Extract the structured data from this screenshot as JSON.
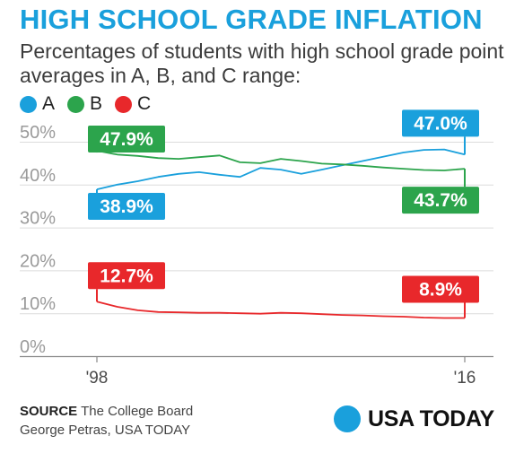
{
  "header": {
    "title": "HIGH SCHOOL GRADE INFLATION",
    "subtitle": "Percentages of students with high school grade point averages in A, B, and C range:"
  },
  "legend": [
    {
      "label": "A",
      "color": "#1aa0dc"
    },
    {
      "label": "B",
      "color": "#2ca44c"
    },
    {
      "label": "C",
      "color": "#e8282b"
    }
  ],
  "chart_data": {
    "type": "line",
    "title": "HIGH SCHOOL GRADE INFLATION",
    "subtitle": "Percentages of students with high school grade point averages in A, B, and C range:",
    "x": [
      1998,
      1999,
      2000,
      2001,
      2002,
      2003,
      2004,
      2005,
      2006,
      2007,
      2008,
      2009,
      2010,
      2011,
      2012,
      2013,
      2014,
      2015,
      2016
    ],
    "x_tick_labels": [
      "'98",
      "'16"
    ],
    "y_tick_labels": [
      "0%",
      "10%",
      "20%",
      "30%",
      "40%",
      "50%"
    ],
    "ylim": [
      0,
      50
    ],
    "grid": true,
    "legend_placement": "top-left",
    "series": [
      {
        "name": "A",
        "color": "#1aa0dc",
        "values": [
          38.9,
          40.0,
          40.8,
          41.8,
          42.5,
          42.9,
          42.3,
          41.8,
          43.9,
          43.5,
          42.5,
          43.5,
          44.5,
          45.5,
          46.5,
          47.5,
          48.1,
          48.2,
          47.0
        ],
        "start_label": "38.9%",
        "end_label": "47.0%"
      },
      {
        "name": "B",
        "color": "#2ca44c",
        "values": [
          47.9,
          47.0,
          46.7,
          46.2,
          46.0,
          46.4,
          46.8,
          45.2,
          45.0,
          46.0,
          45.5,
          44.9,
          44.7,
          44.4,
          44.0,
          43.7,
          43.4,
          43.3,
          43.7
        ],
        "start_label": "47.9%",
        "end_label": "43.7%"
      },
      {
        "name": "C",
        "color": "#e8282b",
        "values": [
          12.7,
          11.5,
          10.7,
          10.3,
          10.2,
          10.1,
          10.1,
          10.0,
          9.9,
          10.1,
          10.0,
          9.8,
          9.6,
          9.5,
          9.3,
          9.2,
          9.0,
          8.9,
          8.9
        ],
        "start_label": "12.7%",
        "end_label": "8.9%"
      }
    ]
  },
  "footer": {
    "source_label": "SOURCE",
    "source_text": "The College Board",
    "credit": "George Petras, USA TODAY",
    "logo_text": "USA TODAY",
    "logo_color": "#1aa0dc"
  }
}
